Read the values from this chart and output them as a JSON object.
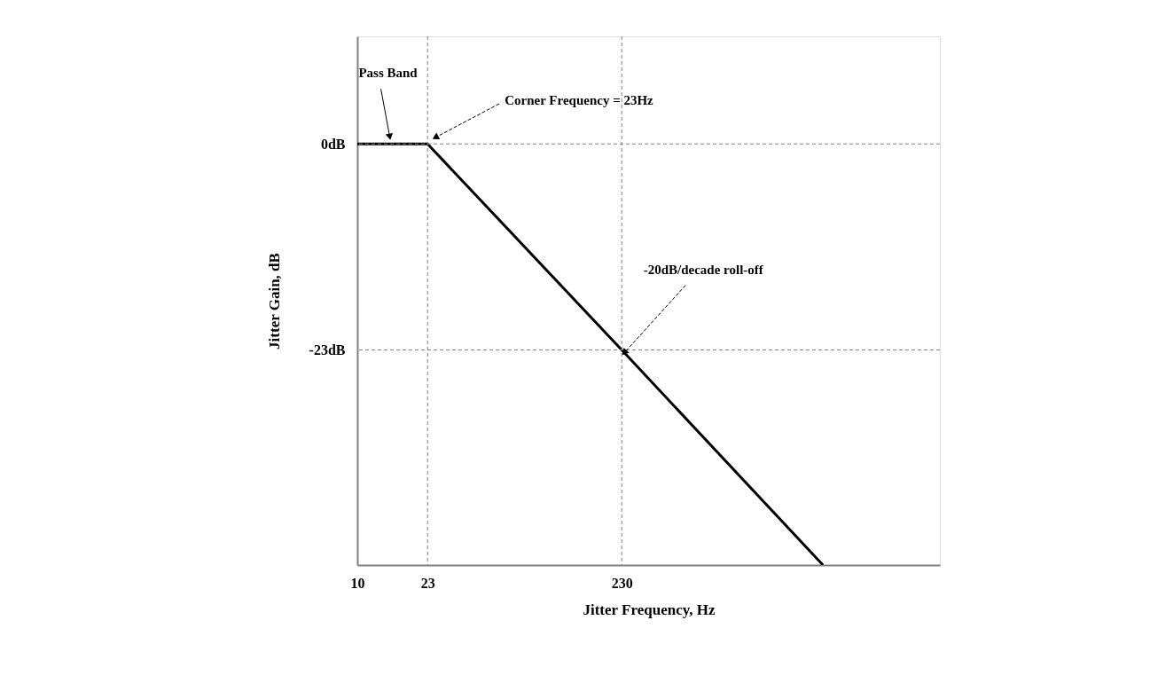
{
  "chart_data": {
    "type": "line",
    "xlabel": "Jitter Frequency, Hz",
    "ylabel": "Jitter Gain, dB",
    "log": "x",
    "xlim": [
      10,
      10000
    ],
    "xticks": [
      10,
      23,
      230
    ],
    "ylim": [
      -47,
      12
    ],
    "yticks": [
      {
        "value": 0,
        "label": "0dB"
      },
      {
        "value": -23,
        "label": "-23dB"
      }
    ],
    "grid": false,
    "marker": "none",
    "line_style": "solid",
    "series": [
      {
        "color": "#000000",
        "x": [
          10,
          23,
          230,
          2500
        ],
        "values": [
          0,
          0,
          -23,
          -47
        ]
      }
    ],
    "ref_lines": [
      {
        "axis": "y",
        "value": 0,
        "color": "#808080",
        "line_style": "dashed"
      },
      {
        "axis": "x",
        "value": 23,
        "color": "#808080",
        "line_style": "dashed"
      },
      {
        "axis": "y",
        "value": -23,
        "color": "#808080",
        "line_style": "dashed"
      },
      {
        "axis": "x",
        "value": 230,
        "color": "#808080",
        "line_style": "dashed"
      }
    ],
    "annotations": [
      {
        "text": "Pass Band",
        "x": 15,
        "y": 0
      },
      "Corner Frequency = 23Hz",
      {
        "text": "-20dB/decade roll-off",
        "x": 230,
        "y": -23
      }
    ]
  }
}
